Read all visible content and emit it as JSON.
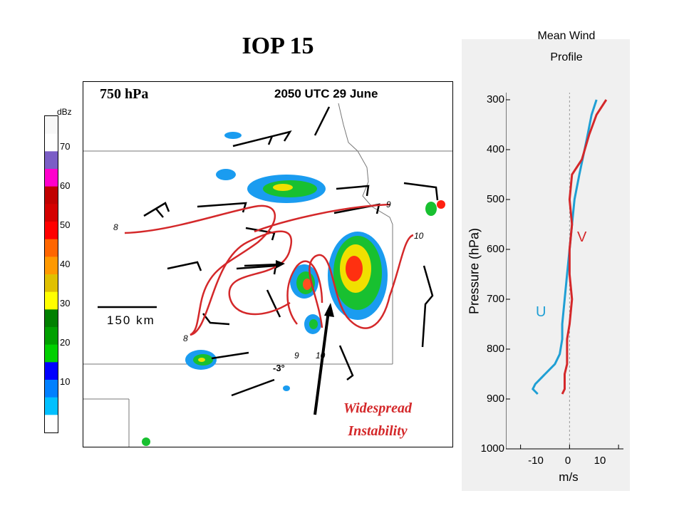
{
  "title": "IOP 15",
  "map": {
    "level": "750 hPa",
    "time": "2050 UTC 29 June",
    "scale": "150 km",
    "temperature": "-3°",
    "contour_labels": [
      "8",
      "8",
      "9",
      "9",
      "10",
      "10"
    ],
    "caption_line1": "Widespread",
    "caption_line2": "Instability"
  },
  "legend": {
    "unit": "dBz",
    "labels": [
      "70",
      "60",
      "50",
      "40",
      "30",
      "20",
      "10"
    ],
    "colors": [
      "#f8f8f8",
      "#ffffff",
      "#7b5ec6",
      "#ff00cc",
      "#c00000",
      "#d40000",
      "#ff0000",
      "#ff6600",
      "#ff9900",
      "#e0c000",
      "#ffff00",
      "#008000",
      "#00a000",
      "#00d000",
      "#0000ff",
      "#0080ff",
      "#00c0ff",
      "#ffffff"
    ]
  },
  "profile": {
    "title_line1": "Mean Wind",
    "title_line2": "Profile",
    "ylabel": "Pressure (hPa)",
    "xlabel": "m/s",
    "pressure_ticks": [
      "300",
      "400",
      "500",
      "600",
      "700",
      "800",
      "900",
      "1000"
    ],
    "x_ticks": [
      "-10",
      "0",
      "10"
    ],
    "u_label": "U",
    "v_label": "V",
    "u_color": "#1f9fd4",
    "v_color": "#d4282a"
  },
  "chart_data": {
    "type": "line",
    "xlabel": "m/s",
    "ylabel": "Pressure (hPa)",
    "xlim": [
      -13,
      11
    ],
    "ylim": [
      1000,
      270
    ],
    "series": [
      {
        "name": "U",
        "x": [
          5.5,
          4.5,
          3.5,
          2,
          1,
          0.5,
          0,
          -0.5,
          -1,
          -1.5,
          -1.5,
          -2,
          -3,
          -5,
          -7,
          -7.5,
          -6.5
        ],
        "y": [
          300,
          330,
          380,
          450,
          500,
          550,
          600,
          650,
          700,
          750,
          780,
          810,
          830,
          850,
          870,
          880,
          890
        ]
      },
      {
        "name": "V",
        "x": [
          7.5,
          5.5,
          4,
          2.5,
          0.5,
          0,
          0.5,
          0,
          0,
          0.5,
          0,
          -0.5,
          -0.5,
          -0.5,
          -1,
          -1,
          -1.5
        ],
        "y": [
          300,
          330,
          370,
          420,
          450,
          500,
          550,
          600,
          650,
          700,
          750,
          780,
          800,
          830,
          850,
          880,
          890
        ]
      }
    ]
  }
}
